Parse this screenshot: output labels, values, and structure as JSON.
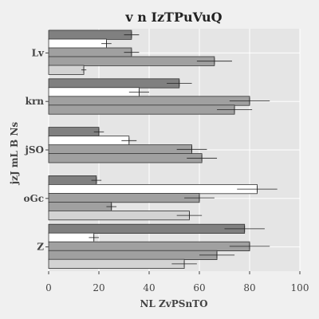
{
  "chart_data": {
    "type": "bar",
    "orientation": "horizontal",
    "title": "v n IzTPuVuQ",
    "xlabel": "NL ZvPSnTO",
    "ylabel": "jzJ mL B Ns",
    "categories": [
      "Lv",
      "krn",
      "jSO",
      "oGc",
      "Z"
    ],
    "xlim": [
      0,
      100
    ],
    "xticks": [
      "0",
      "20",
      "40",
      "60",
      "80",
      "100"
    ],
    "grid": true,
    "legend": "none",
    "series": [
      {
        "color": "#808080",
        "values": [
          33,
          52,
          20,
          19,
          78
        ],
        "errors": [
          3,
          5,
          2,
          2,
          8
        ]
      },
      {
        "color": "#ffffff",
        "values": [
          23,
          36,
          32,
          83,
          18
        ],
        "errors": [
          2,
          4,
          3,
          8,
          2
        ]
      },
      {
        "color": "#a0a0a0",
        "values": [
          33,
          80,
          57,
          60,
          80
        ],
        "errors": [
          3,
          8,
          6,
          6,
          8
        ]
      },
      {
        "color": "#a0a0a0",
        "values": [
          66,
          74,
          61,
          25,
          67
        ],
        "errors": [
          7,
          7,
          6,
          2,
          7
        ]
      },
      {
        "color": "#d3d3d3",
        "values": [
          14,
          0,
          0,
          56,
          54
        ],
        "errors": [
          1,
          0,
          0,
          5,
          5
        ]
      }
    ]
  }
}
